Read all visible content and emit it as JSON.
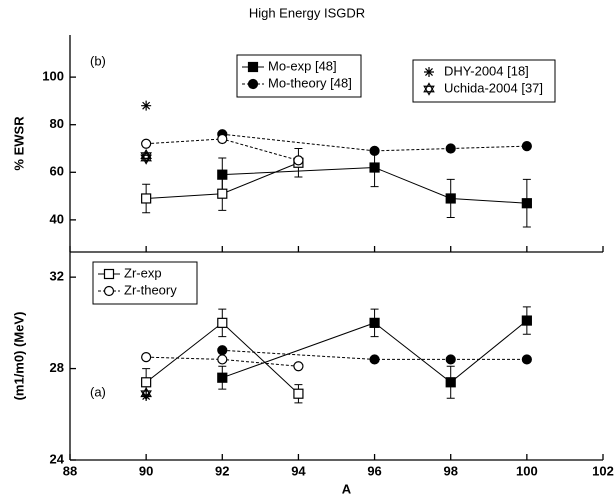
{
  "chart_data": [
    {
      "type": "line",
      "title": "High Energy ISGDR",
      "label": "(b)",
      "y_label": "% EWSR",
      "xlim": [
        88,
        102
      ],
      "xticks": [
        88,
        90,
        92,
        94,
        96,
        98,
        100,
        102
      ],
      "xtick_labels": false,
      "ylim": [
        26.5,
        117.7
      ],
      "yticks": [
        40,
        60,
        80,
        100
      ],
      "series": [
        {
          "name": "Mo-exp [48]",
          "color": "#000000",
          "marker": "square",
          "filled": true,
          "line": "solid",
          "legend_box": 1,
          "x": [
            92,
            96,
            98,
            100
          ],
          "values": [
            59,
            62,
            49,
            47
          ],
          "errors": [
            7,
            8,
            8,
            10
          ]
        },
        {
          "name": "Mo-theory [48]",
          "color": "#000000",
          "marker": "circle",
          "filled": true,
          "line": "dashed",
          "legend_box": 1,
          "x": [
            92,
            96,
            98,
            100
          ],
          "values": [
            76,
            69,
            70,
            71
          ]
        },
        {
          "name": "DHY-2004 [18]",
          "color": "#000000",
          "marker": "asterisk",
          "filled": false,
          "line": "none",
          "legend_box": 2,
          "x": [
            90
          ],
          "values": [
            88
          ]
        },
        {
          "name": "Uchida-2004 [37]",
          "color": "#000000",
          "marker": "star",
          "filled": false,
          "line": "none",
          "legend_box": 2,
          "x": [
            90,
            90
          ],
          "values": [
            66,
            67
          ]
        },
        {
          "name": "Zr-exp",
          "color": "#000000",
          "marker": "square",
          "filled": false,
          "line": "solid",
          "legend_box": null,
          "x": [
            90,
            92,
            94
          ],
          "values": [
            49,
            51,
            64
          ],
          "errors": [
            6,
            7,
            6
          ]
        },
        {
          "name": "Zr-theory",
          "color": "#000000",
          "marker": "circle",
          "filled": false,
          "line": "dashed",
          "legend_box": null,
          "x": [
            90,
            92,
            94
          ],
          "values": [
            72,
            74,
            65
          ]
        }
      ]
    },
    {
      "type": "line",
      "label": "(a)",
      "y_label": "(m1/m0) (MeV)",
      "x_label": "A",
      "xlim": [
        88,
        102
      ],
      "xticks": [
        88,
        90,
        92,
        94,
        96,
        98,
        100,
        102
      ],
      "xtick_labels": true,
      "ylim": [
        24,
        33.1
      ],
      "yticks": [
        24,
        28,
        32
      ],
      "series": [
        {
          "name": "Zr-exp",
          "color": "#000000",
          "marker": "square",
          "filled": false,
          "line": "solid",
          "legend_box": 1,
          "x": [
            90,
            92,
            94
          ],
          "values": [
            27.4,
            30.0,
            26.9
          ],
          "errors": [
            0.6,
            0.6,
            0.4
          ]
        },
        {
          "name": "Zr-theory",
          "color": "#000000",
          "marker": "circle",
          "filled": false,
          "line": "dashed",
          "legend_box": 1,
          "x": [
            90,
            92,
            94
          ],
          "values": [
            28.5,
            28.4,
            28.1
          ]
        },
        {
          "name": "Mo-exp [48]",
          "color": "#000000",
          "marker": "square",
          "filled": true,
          "line": "solid",
          "legend_box": null,
          "x": [
            92,
            96,
            98,
            100
          ],
          "values": [
            27.6,
            30.0,
            27.4,
            30.1
          ],
          "errors": [
            0.5,
            0.6,
            0.7,
            0.6
          ]
        },
        {
          "name": "Mo-theory [48]",
          "color": "#000000",
          "marker": "circle",
          "filled": true,
          "line": "dashed",
          "legend_box": null,
          "x": [
            92,
            96,
            98,
            100
          ],
          "values": [
            28.8,
            28.4,
            28.4,
            28.4
          ]
        },
        {
          "name": "DHY-2004 [18]",
          "color": "#000000",
          "marker": "asterisk",
          "filled": false,
          "line": "none",
          "legend_box": null,
          "x": [
            90
          ],
          "values": [
            26.8
          ]
        },
        {
          "name": "Uchida-2004 [37]",
          "color": "#000000",
          "marker": "star",
          "filled": false,
          "line": "none",
          "legend_box": null,
          "x": [
            90
          ],
          "values": [
            26.9
          ]
        }
      ]
    }
  ]
}
